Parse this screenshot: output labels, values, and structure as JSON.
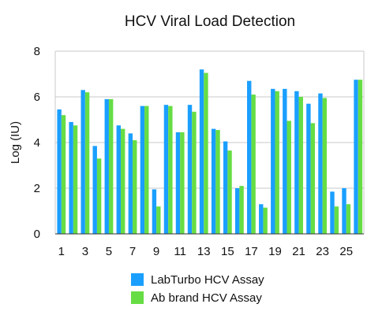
{
  "chart_data": {
    "type": "bar",
    "title": "HCV Viral Load Detection",
    "xlabel": "",
    "ylabel": "Log (IU)",
    "ylim": [
      0,
      8
    ],
    "yticks": [
      0,
      2,
      4,
      6,
      8
    ],
    "grid": true,
    "legend_position": "bottom",
    "categories": [
      "1",
      "2",
      "3",
      "4",
      "5",
      "6",
      "7",
      "8",
      "9",
      "10",
      "11",
      "12",
      "13",
      "14",
      "15",
      "16",
      "17",
      "18",
      "19",
      "20",
      "21",
      "22",
      "23",
      "24",
      "25",
      "26"
    ],
    "x_tick_labels": [
      "1",
      "3",
      "5",
      "7",
      "9",
      "11",
      "13",
      "15",
      "17",
      "19",
      "21",
      "23",
      "25"
    ],
    "series": [
      {
        "name": "LabTurbo HCV Assay",
        "color": "#1a9fff",
        "values": [
          5.45,
          4.9,
          6.3,
          3.85,
          5.9,
          4.75,
          4.4,
          5.6,
          1.95,
          5.65,
          4.45,
          5.65,
          7.2,
          4.6,
          4.05,
          2.0,
          6.7,
          1.3,
          6.35,
          6.35,
          6.25,
          5.7,
          6.15,
          1.85,
          2.0,
          6.75
        ]
      },
      {
        "name": "Ab brand HCV Assay",
        "color": "#66dd44",
        "values": [
          5.2,
          4.75,
          6.2,
          3.3,
          5.9,
          4.6,
          4.1,
          5.6,
          1.2,
          5.6,
          4.45,
          5.35,
          7.05,
          4.55,
          3.65,
          2.1,
          6.1,
          1.15,
          6.25,
          4.95,
          6.0,
          4.85,
          5.95,
          1.2,
          1.3,
          6.75
        ]
      }
    ]
  }
}
